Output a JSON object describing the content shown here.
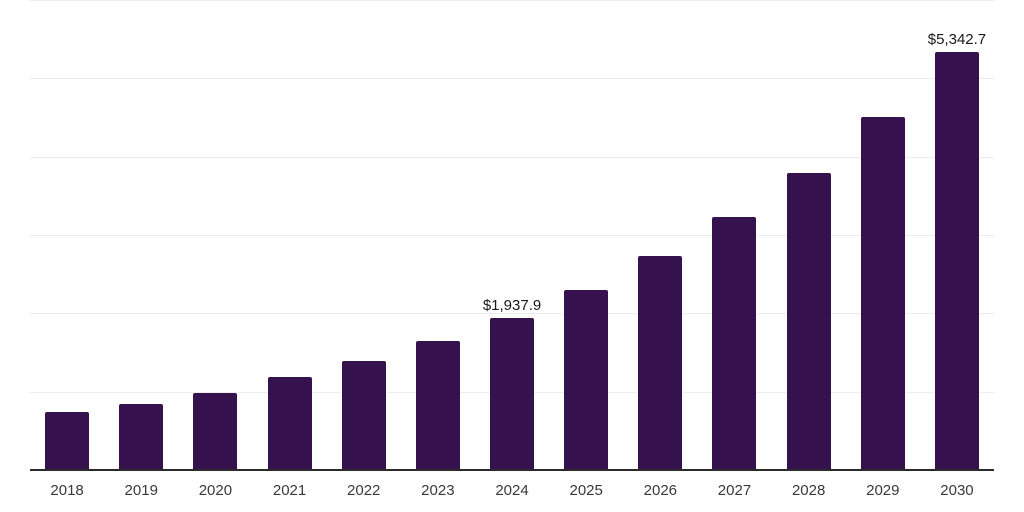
{
  "chart_data": {
    "type": "bar",
    "title": "",
    "xlabel": "",
    "ylabel": "",
    "categories": [
      "2018",
      "2019",
      "2020",
      "2021",
      "2022",
      "2023",
      "2024",
      "2025",
      "2026",
      "2027",
      "2028",
      "2029",
      "2030"
    ],
    "values": [
      740,
      845,
      980,
      1190,
      1395,
      1650,
      1937.9,
      2295,
      2730,
      3225,
      3790,
      4510,
      5342.7
    ],
    "value_labels": {
      "6": "$1,937.9",
      "12": "$5,342.7"
    },
    "ylim": [
      0,
      6000
    ],
    "grid_step": 1000,
    "grid_visible": true,
    "legend_position": "none",
    "colors": {
      "bar": "#35124e",
      "grid": "#ededed",
      "axis": "#2b2b2b",
      "value_label": "#1a1a1a",
      "tick_label": "#3a3a3a",
      "background": "#ffffff"
    }
  }
}
